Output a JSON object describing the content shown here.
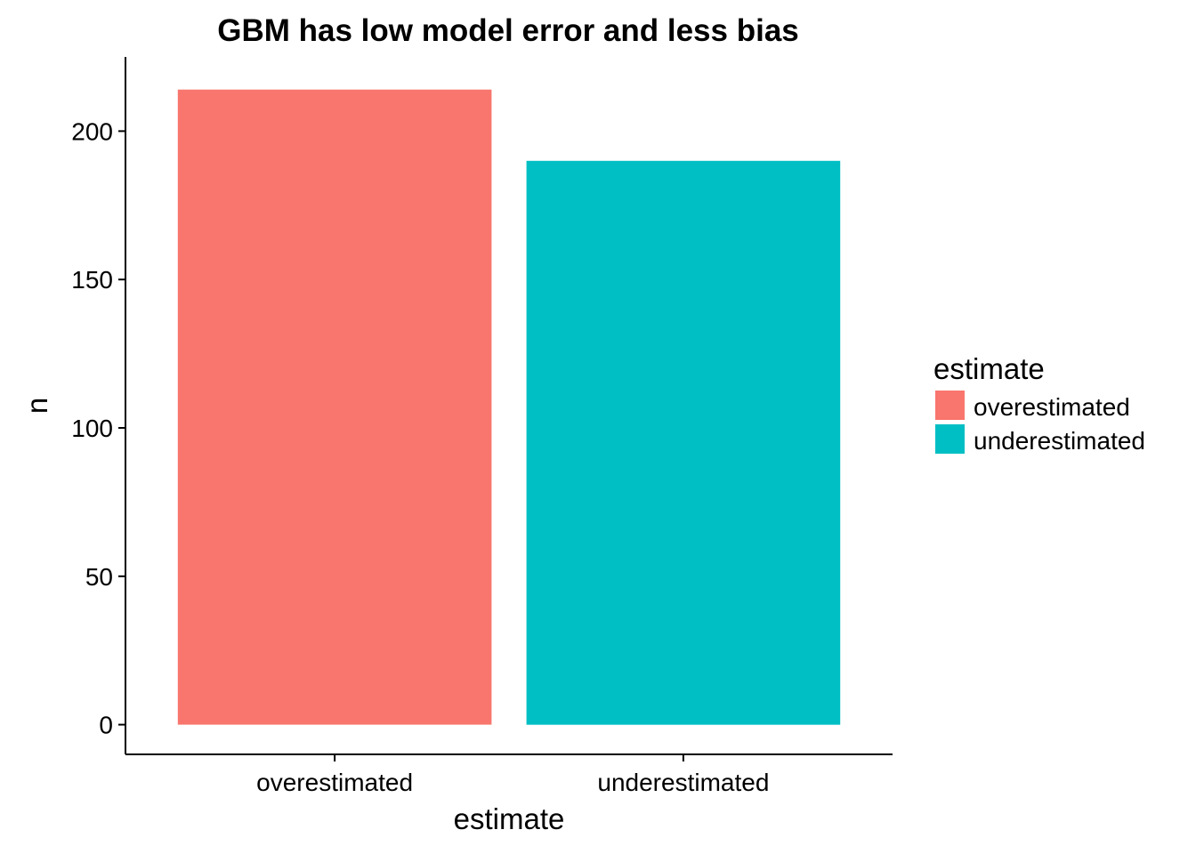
{
  "chart_data": {
    "type": "bar",
    "title": "GBM has low model error and less bias",
    "xlabel": "estimate",
    "ylabel": "n",
    "categories": [
      "overestimated",
      "underestimated"
    ],
    "values": [
      214,
      190
    ],
    "colors": [
      "#F8766D",
      "#00BFC4"
    ],
    "ylim": [
      -10,
      225
    ],
    "yticks": [
      0,
      50,
      100,
      150,
      200
    ],
    "ytick_labels": [
      "0",
      "50",
      "100",
      "150",
      "200"
    ],
    "grid": false,
    "legend": {
      "title": "estimate",
      "placement": "right",
      "entries": [
        {
          "label": "overestimated",
          "color": "#F8766D"
        },
        {
          "label": "underestimated",
          "color": "#00BFC4"
        }
      ]
    }
  }
}
